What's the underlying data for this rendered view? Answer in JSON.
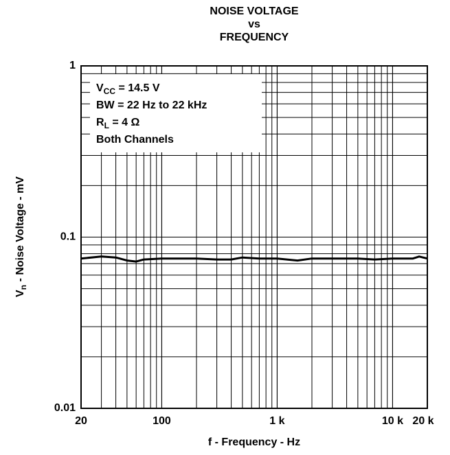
{
  "chart_data": {
    "type": "line",
    "title": [
      "NOISE VOLTAGE",
      "vs",
      "FREQUENCY"
    ],
    "xlabel": "f - Frequency - Hz",
    "ylabel": [
      {
        "t": "V"
      },
      {
        "sub": "n"
      },
      {
        "t": " - Noise Voltage - mV"
      }
    ],
    "annotation": [
      [
        {
          "t": "V"
        },
        {
          "sub": "CC"
        },
        {
          "t": " = 14.5 V"
        }
      ],
      [
        {
          "t": "BW = 22 Hz to 22 kHz"
        }
      ],
      [
        {
          "t": "R"
        },
        {
          "sub": "L"
        },
        {
          "t": " = 4 Ω"
        }
      ],
      [
        {
          "t": "Both Channels"
        }
      ]
    ],
    "xscale": "log",
    "yscale": "log",
    "grid": true,
    "minor_grid": true,
    "xlim": [
      20,
      20000
    ],
    "ylim": [
      0.01,
      1
    ],
    "xticks": [
      20,
      100,
      {
        "value": 1000,
        "label": "1 k"
      },
      {
        "value": 10000,
        "label": "10 k"
      },
      {
        "value": 20000,
        "label": "20 k"
      }
    ],
    "yticks": [
      0.01,
      0.1,
      1
    ],
    "x": [
      20,
      30,
      40,
      50,
      60,
      70,
      100,
      200,
      300,
      400,
      500,
      700,
      1000,
      1500,
      2000,
      5000,
      7000,
      10000,
      15000,
      17000,
      20000
    ],
    "series": [
      {
        "color": "#000000",
        "values": [
          0.075,
          0.077,
          0.076,
          0.073,
          0.072,
          0.074,
          0.075,
          0.075,
          0.074,
          0.074,
          0.076,
          0.075,
          0.075,
          0.073,
          0.075,
          0.075,
          0.074,
          0.075,
          0.075,
          0.077,
          0.075
        ]
      }
    ]
  }
}
